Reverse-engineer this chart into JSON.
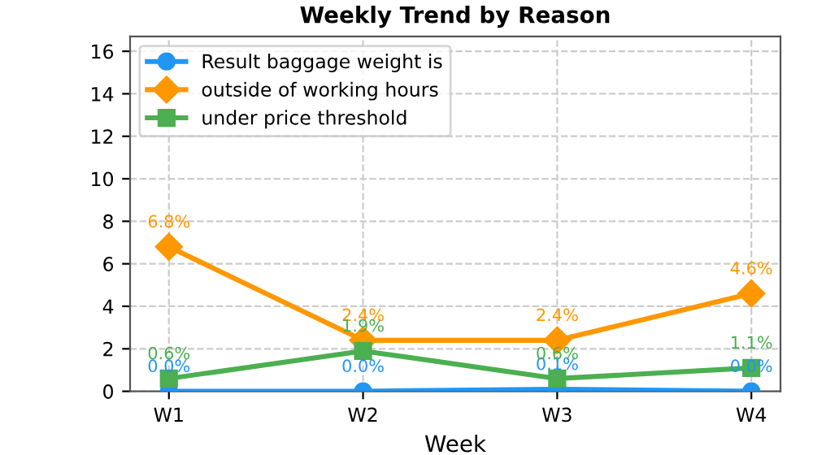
{
  "chart_data": {
    "type": "line",
    "title": "Weekly Trend by Reason",
    "xlabel": "Week",
    "categories": [
      "W1",
      "W2",
      "W3",
      "W4"
    ],
    "series": [
      {
        "name": "Result baggage weight is",
        "color": "#2196f3",
        "marker": "circle",
        "values": [
          0.0,
          0.0,
          0.1,
          0.0
        ],
        "value_labels": [
          "0.0%",
          "0.0%",
          "0.1%",
          "0.0%"
        ]
      },
      {
        "name": "outside of working hours",
        "color": "#ff9800",
        "marker": "diamond",
        "values": [
          6.8,
          2.4,
          2.4,
          4.6
        ],
        "value_labels": [
          "6.8%",
          "2.4%",
          "2.4%",
          "4.6%"
        ]
      },
      {
        "name": "under price threshold",
        "color": "#4caf50",
        "marker": "square",
        "values": [
          0.6,
          1.9,
          0.6,
          1.1
        ],
        "value_labels": [
          "0.6%",
          "1.9%",
          "0.6%",
          "1.1%"
        ]
      }
    ],
    "ylim": [
      0,
      16.7
    ],
    "yticks": [
      0,
      2,
      4,
      6,
      8,
      10,
      12,
      14,
      16
    ],
    "grid": true,
    "legend": "top left",
    "line_style": "solid"
  }
}
